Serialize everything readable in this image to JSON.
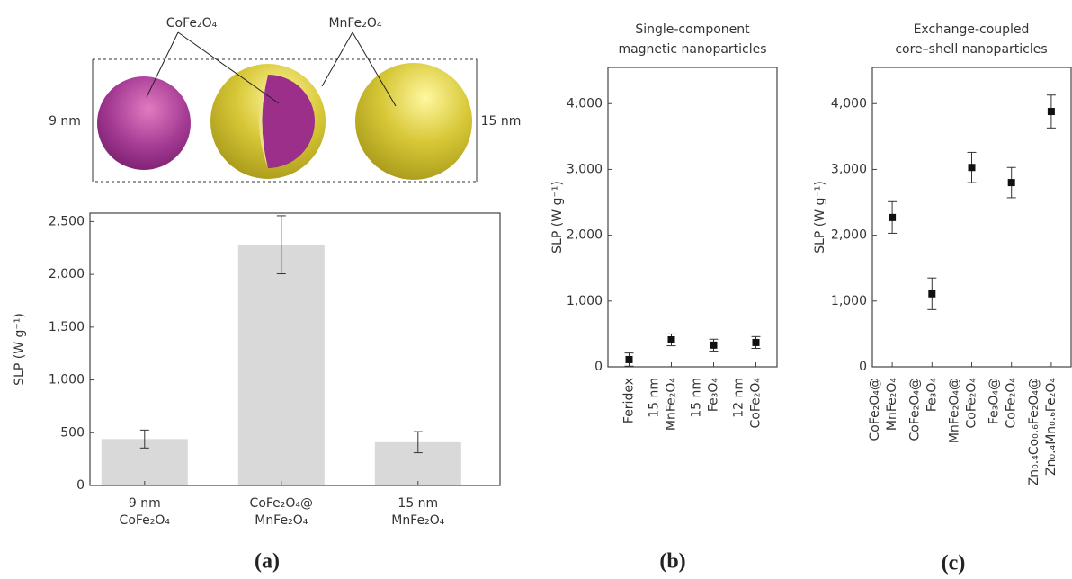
{
  "chart_data": [
    {
      "type": "bar",
      "panel": "(a)",
      "annotations": [
        "CoFe₂O₄",
        "MnFe₂O₄",
        "9 nm",
        "15 nm"
      ],
      "ylabel": "SLP (W g⁻¹)",
      "categories": [
        [
          "9 nm",
          "CoFe₂O₄"
        ],
        [
          "CoFe₂O₄@",
          "MnFe₂O₄"
        ],
        [
          "15 nm",
          "MnFe₂O₄"
        ]
      ],
      "values": [
        440,
        2280,
        410
      ],
      "errors": [
        85,
        275,
        100
      ],
      "color": "#d9d9d9",
      "ylim": [
        0,
        2580
      ],
      "yticks": [
        0,
        500,
        {
          "value": 1000,
          "label": "1,000"
        },
        {
          "value": 1500,
          "label": "1,500"
        },
        {
          "value": 2000,
          "label": "2,000"
        },
        {
          "value": 2500,
          "label": "2,500"
        }
      ]
    },
    {
      "type": "scatter",
      "panel": "(b)",
      "title": [
        "Single-component",
        "magnetic nanoparticles"
      ],
      "ylabel": "SLP (W g⁻¹)",
      "categories": [
        [
          "Feridex"
        ],
        [
          "15 nm",
          "MnFe₂O₄"
        ],
        [
          "15 nm",
          "Fe₃O₄"
        ],
        [
          "12 nm",
          "CoFe₂O₄"
        ]
      ],
      "values": [
        110,
        410,
        330,
        370
      ],
      "errors": [
        100,
        90,
        90,
        90
      ],
      "color": "#111111",
      "ylim": [
        0,
        4550
      ],
      "yticks": [
        0,
        {
          "value": 1000,
          "label": "1,000"
        },
        {
          "value": 2000,
          "label": "2,000"
        },
        {
          "value": 3000,
          "label": "3,000"
        },
        {
          "value": 4000,
          "label": "4,000"
        }
      ]
    },
    {
      "type": "scatter",
      "panel": "(c)",
      "title": [
        "Exchange-coupled",
        "core–shell nanoparticles"
      ],
      "ylabel": "SLP (W g⁻¹)",
      "categories": [
        [
          "CoFe₂O₄@",
          "MnFe₂O₄"
        ],
        [
          "CoFe₂O₄@",
          "Fe₃O₄"
        ],
        [
          "MnFe₂O₄@",
          "CoFe₂O₄"
        ],
        [
          "Fe₃O₄@",
          "CoFe₂O₄"
        ],
        [
          "Zn₀.₄Co₀.₆Fe₂O₄@",
          "Zn₀.₄Mn₀.₆Fe₂O₄"
        ]
      ],
      "values": [
        2270,
        1110,
        3030,
        2800,
        3880
      ],
      "errors": [
        240,
        240,
        230,
        230,
        250
      ],
      "color": "#111111",
      "ylim": [
        0,
        4550
      ],
      "yticks": [
        0,
        {
          "value": 1000,
          "label": "1,000"
        },
        {
          "value": 2000,
          "label": "2,000"
        },
        {
          "value": 3000,
          "label": "3,000"
        },
        {
          "value": 4000,
          "label": "4,000"
        }
      ]
    }
  ]
}
